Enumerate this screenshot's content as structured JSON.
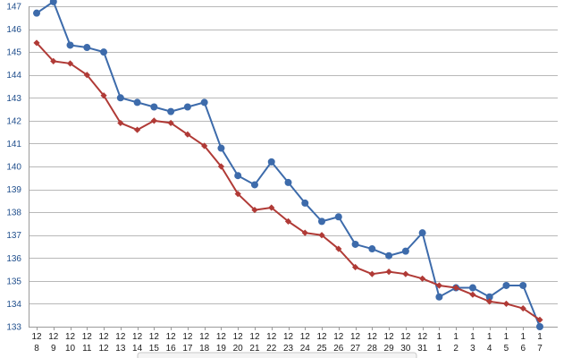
{
  "chart_data": {
    "type": "line",
    "title": "",
    "xlabel": "",
    "ylabel": "",
    "ylim": [
      133,
      147
    ],
    "yticks": [
      "133",
      "134",
      "135",
      "136",
      "137",
      "138",
      "139",
      "140",
      "141",
      "142",
      "143",
      "144",
      "145",
      "146",
      "147"
    ],
    "grid": true,
    "categories": [
      {
        "m": "12",
        "d": "8"
      },
      {
        "m": "12",
        "d": "9"
      },
      {
        "m": "12",
        "d": "10"
      },
      {
        "m": "12",
        "d": "11"
      },
      {
        "m": "12",
        "d": "12"
      },
      {
        "m": "12",
        "d": "13"
      },
      {
        "m": "12",
        "d": "14"
      },
      {
        "m": "12",
        "d": "15"
      },
      {
        "m": "12",
        "d": "16"
      },
      {
        "m": "12",
        "d": "17"
      },
      {
        "m": "12",
        "d": "18"
      },
      {
        "m": "12",
        "d": "19"
      },
      {
        "m": "12",
        "d": "20"
      },
      {
        "m": "12",
        "d": "21"
      },
      {
        "m": "12",
        "d": "22"
      },
      {
        "m": "12",
        "d": "23"
      },
      {
        "m": "12",
        "d": "24"
      },
      {
        "m": "12",
        "d": "25"
      },
      {
        "m": "12",
        "d": "26"
      },
      {
        "m": "12",
        "d": "27"
      },
      {
        "m": "12",
        "d": "28"
      },
      {
        "m": "12",
        "d": "29"
      },
      {
        "m": "12",
        "d": "30"
      },
      {
        "m": "12",
        "d": "31"
      },
      {
        "m": "1",
        "d": "1"
      },
      {
        "m": "1",
        "d": "2"
      },
      {
        "m": "1",
        "d": "3"
      },
      {
        "m": "1",
        "d": "4"
      },
      {
        "m": "1",
        "d": "5"
      },
      {
        "m": "1",
        "d": "6"
      },
      {
        "m": "1",
        "d": "7"
      }
    ],
    "series": [
      {
        "color": "#3d6bab",
        "marker": "circle",
        "values": [
          146.7,
          147.2,
          145.3,
          145.2,
          145.0,
          143.0,
          142.8,
          142.6,
          142.4,
          142.6,
          142.8,
          140.8,
          139.6,
          139.2,
          140.2,
          139.3,
          138.4,
          137.6,
          137.8,
          136.6,
          136.4,
          136.1,
          136.3,
          137.1,
          134.3,
          134.7,
          134.7,
          134.3,
          134.8,
          134.8,
          133.0
        ]
      },
      {
        "color": "#b03a36",
        "marker": "diamond",
        "values": [
          145.4,
          144.6,
          144.5,
          144.0,
          143.1,
          141.9,
          141.6,
          142.0,
          141.9,
          141.4,
          140.9,
          140.0,
          138.8,
          138.1,
          138.2,
          137.6,
          137.1,
          137.0,
          136.4,
          135.6,
          135.3,
          135.4,
          135.3,
          135.1,
          134.8,
          134.7,
          134.4,
          134.1,
          134.0,
          133.8,
          133.3
        ]
      }
    ]
  }
}
